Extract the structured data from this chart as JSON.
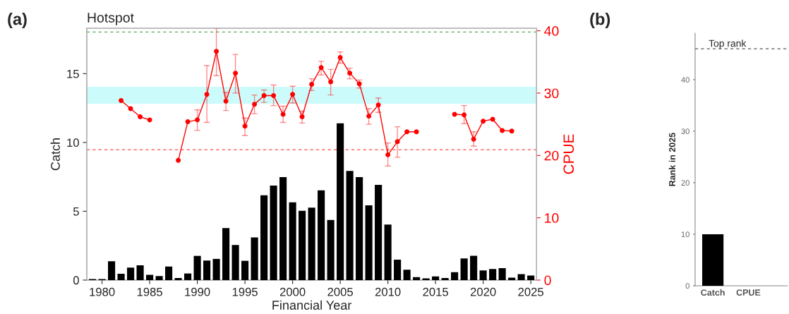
{
  "chart_data": [
    {
      "type": "bar",
      "title": "Hotspot",
      "xlabel": "Financial Year",
      "ylabel": "Catch",
      "y2label": "CPUE",
      "annotations": [
        "(a)"
      ],
      "x": [
        1979,
        1980,
        1981,
        1982,
        1983,
        1984,
        1985,
        1986,
        1987,
        1988,
        1989,
        1990,
        1991,
        1992,
        1993,
        1994,
        1995,
        1996,
        1997,
        1998,
        1999,
        2000,
        2001,
        2002,
        2003,
        2004,
        2005,
        2006,
        2007,
        2008,
        2009,
        2010,
        2011,
        2012,
        2013,
        2014,
        2015,
        2016,
        2017,
        2018,
        2019,
        2020,
        2021,
        2022,
        2023,
        2024,
        2025
      ],
      "series": [
        {
          "type": "bar",
          "color": "#000000",
          "values": [
            0.08,
            0.08,
            1.37,
            0.46,
            0.91,
            1.08,
            0.38,
            0.29,
            0.99,
            0.15,
            0.48,
            1.76,
            1.42,
            1.54,
            3.78,
            2.55,
            1.4,
            3.1,
            6.16,
            6.87,
            7.48,
            5.65,
            5.03,
            5.26,
            6.52,
            4.37,
            11.39,
            7.93,
            7.48,
            5.43,
            6.92,
            4.04,
            1.49,
            0.75,
            0.22,
            0.12,
            0.27,
            0.15,
            0.58,
            1.58,
            1.76,
            0.7,
            0.8,
            0.87,
            0.17,
            0.43,
            0.33
          ]
        },
        {
          "type": "line",
          "axis": "y2",
          "color": "#ff0000",
          "marker": "circle",
          "line_style": "solid",
          "values": [
            null,
            null,
            null,
            28.8,
            27.5,
            26.2,
            25.7,
            null,
            null,
            19.2,
            25.4,
            25.7,
            29.8,
            36.7,
            28.7,
            33.2,
            24.7,
            28.2,
            29.6,
            29.6,
            26.6,
            29.8,
            26.2,
            31.4,
            34.1,
            31.8,
            35.7,
            33.2,
            31.5,
            26.3,
            28.1,
            20.1,
            22.2,
            23.8,
            23.8,
            null,
            null,
            null,
            26.6,
            26.5,
            22.6,
            25.5,
            25.8,
            24.0,
            23.9,
            null,
            null
          ],
          "errors": [
            null,
            null,
            null,
            null,
            null,
            null,
            null,
            null,
            null,
            null,
            null,
            [
              24.0,
              27.3
            ],
            [
              25.3,
              34.4
            ],
            [
              32.8,
              40.4
            ],
            [
              27.2,
              30.1
            ],
            [
              30.0,
              36.2
            ],
            [
              23.2,
              26.0
            ],
            [
              26.7,
              29.7
            ],
            [
              28.5,
              30.5
            ],
            [
              28.0,
              31.3
            ],
            [
              25.3,
              27.9
            ],
            [
              28.4,
              31.1
            ],
            [
              25.2,
              27.1
            ],
            [
              30.4,
              32.3
            ],
            [
              32.9,
              35.1
            ],
            [
              29.7,
              33.8
            ],
            [
              34.8,
              36.6
            ],
            [
              32.3,
              34.0
            ],
            [
              30.8,
              32.1
            ],
            [
              25.0,
              27.5
            ],
            [
              26.9,
              29.2
            ],
            [
              18.3,
              22.0
            ],
            [
              19.7,
              24.6
            ],
            null,
            null,
            null,
            null,
            null,
            null,
            [
              25.1,
              28.0
            ],
            [
              21.5,
              23.8
            ],
            null,
            null,
            null,
            null,
            null,
            null
          ]
        }
      ],
      "xlim": [
        1978.4,
        2025.6
      ],
      "xticks": [
        1980,
        1985,
        1990,
        1995,
        2000,
        2005,
        2010,
        2015,
        2020,
        2025
      ],
      "ylim": [
        0,
        18.3
      ],
      "yticks": [
        0,
        5,
        10,
        15
      ],
      "y2lim": [
        0,
        40.4
      ],
      "y2ticks": [
        0,
        10,
        20,
        30,
        40
      ],
      "ref_lines": [
        {
          "axis": "y2",
          "value": 39.8,
          "color": "#55aa55",
          "line_style": "dashed"
        },
        {
          "axis": "y2",
          "value": 20.9,
          "color": "#ff6666",
          "line_style": "dashed"
        }
      ],
      "bands": [
        {
          "axis": "y2",
          "from": 28.3,
          "to": 31.0,
          "color": "#ccfbfb"
        }
      ],
      "grid": false
    },
    {
      "type": "bar",
      "ylabel": "Rank in 2025",
      "annotations": [
        "(b)"
      ],
      "categories": [
        "Catch",
        "CPUE"
      ],
      "values": [
        10,
        null
      ],
      "color": "#000000",
      "ylim": [
        0,
        49
      ],
      "yticks": [
        0,
        10,
        20,
        30,
        40
      ],
      "ref_lines": [
        {
          "axis": "y",
          "value": 46,
          "label": "Top rank",
          "color": "#555555",
          "line_style": "dashed"
        }
      ],
      "grid": false
    }
  ]
}
